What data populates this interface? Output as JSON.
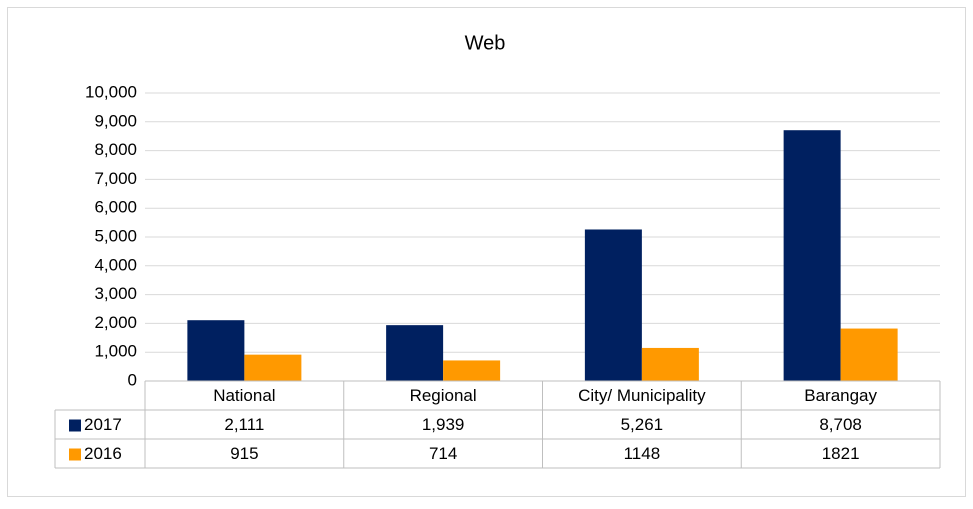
{
  "chart_data": {
    "type": "bar",
    "title": "Web",
    "categories": [
      "National",
      "Regional",
      "City/ Municipality",
      "Barangay"
    ],
    "series": [
      {
        "name": "2017",
        "color": "#002060",
        "values": [
          2111,
          1939,
          5261,
          8708
        ],
        "value_labels": [
          "2,111",
          "1,939",
          "5,261",
          "8,708"
        ]
      },
      {
        "name": "2016",
        "color": "#ff9900",
        "values": [
          915,
          714,
          1148,
          1821
        ]
      }
    ],
    "ylim": [
      0,
      10000
    ],
    "yticks": [
      0,
      {
        "value": 1000,
        "label": "1,000"
      },
      {
        "value": 2000,
        "label": "2,000"
      },
      {
        "value": 3000,
        "label": "3,000"
      },
      {
        "value": 4000,
        "label": "4,000"
      },
      {
        "value": 5000,
        "label": "5,000"
      },
      {
        "value": 6000,
        "label": "6,000"
      },
      {
        "value": 7000,
        "label": "7,000"
      },
      {
        "value": 8000,
        "label": "8,000"
      },
      {
        "value": 9000,
        "label": "9,000"
      },
      {
        "value": 10000,
        "label": "10,000"
      }
    ],
    "grid": true,
    "data_table": true
  }
}
